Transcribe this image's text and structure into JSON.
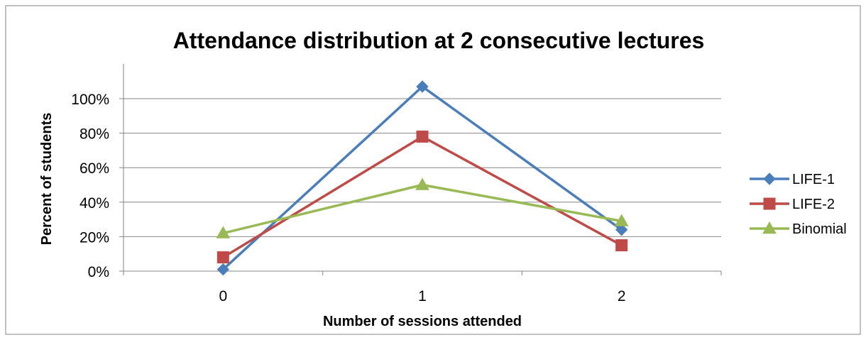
{
  "chart_data": {
    "type": "line",
    "title": "Attendance distribution at 2 consecutive lectures",
    "xlabel": "Number of sessions attended",
    "ylabel": "Percent of students",
    "categories": [
      "0",
      "1",
      "2"
    ],
    "ylim": [
      0,
      1.0
    ],
    "yticks": [
      "0%",
      "20%",
      "40%",
      "60%",
      "80%",
      "100%"
    ],
    "grid": true,
    "legend_position": "right",
    "series": [
      {
        "name": "LIFE-1",
        "values": [
          0.01,
          1.07,
          0.24
        ],
        "color": "#4a7ebb",
        "marker": "diamond"
      },
      {
        "name": "LIFE-2",
        "values": [
          0.08,
          0.78,
          0.15
        ],
        "color": "#be4b48",
        "marker": "square"
      },
      {
        "name": "Binomial",
        "values": [
          0.22,
          0.5,
          0.29
        ],
        "color": "#98b954",
        "marker": "triangle"
      }
    ]
  }
}
